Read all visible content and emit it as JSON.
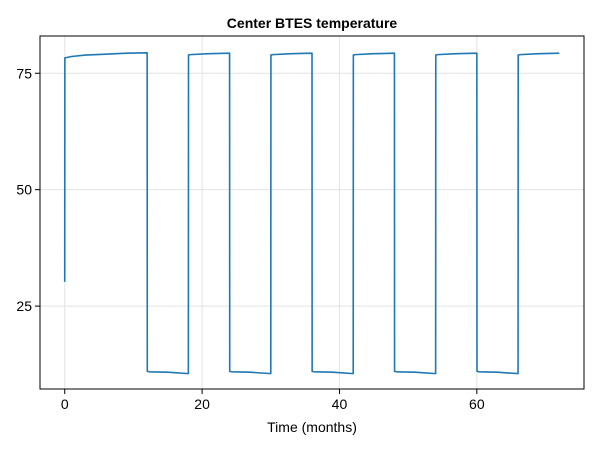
{
  "chart_data": {
    "type": "line",
    "title": "Center BTES temperature",
    "xlabel": "Time (months)",
    "ylabel": "",
    "xlim": [
      -3.6,
      75.6
    ],
    "ylim": [
      7.2,
      83.0
    ],
    "xticks": [
      0,
      20,
      40,
      60
    ],
    "yticks": [
      25,
      50,
      75
    ],
    "grid": true,
    "colors": {
      "series": "#1f77b4"
    },
    "series": [
      {
        "name": "",
        "x": [
          0,
          0.02,
          1,
          3,
          6,
          9,
          12,
          12.02,
          12.3,
          15,
          18,
          18.02,
          18.3,
          21,
          24,
          24.02,
          24.3,
          27,
          30,
          30.02,
          30.3,
          33,
          36,
          36.02,
          36.3,
          39,
          42,
          42.02,
          42.3,
          45,
          48,
          48.02,
          48.3,
          51,
          54,
          54.02,
          54.3,
          57,
          60,
          60.02,
          60.3,
          63,
          66,
          66.02,
          66.3,
          69,
          72
        ],
        "y": [
          30.2,
          78.3,
          78.6,
          78.9,
          79.1,
          79.3,
          79.4,
          11.0,
          10.9,
          10.8,
          10.5,
          78.9,
          79.0,
          79.2,
          79.3,
          11.0,
          10.9,
          10.8,
          10.5,
          78.9,
          79.0,
          79.2,
          79.3,
          11.0,
          10.9,
          10.8,
          10.5,
          78.9,
          79.0,
          79.2,
          79.3,
          11.0,
          10.9,
          10.8,
          10.5,
          78.9,
          79.0,
          79.2,
          79.3,
          11.0,
          10.9,
          10.8,
          10.5,
          78.9,
          79.0,
          79.2,
          79.3
        ]
      }
    ]
  }
}
